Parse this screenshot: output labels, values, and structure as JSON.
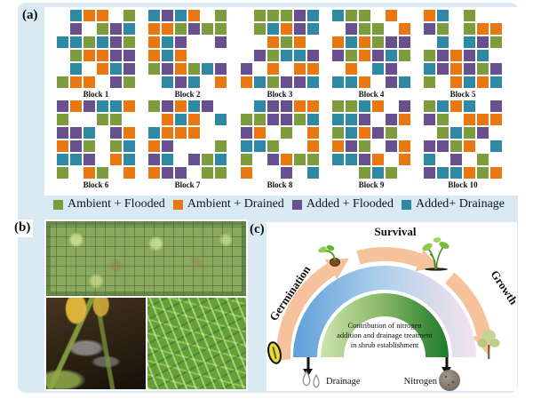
{
  "panel_labels": {
    "a": "(a)",
    "b": "(b)",
    "c": "(c)"
  },
  "colors": {
    "figure_background": "#d9eaf2",
    "ambient_flooded": "#7d9c3e",
    "ambient_drained": "#e97712",
    "added_flooded": "#68508f",
    "added_drainage": "#2f89a5",
    "flow_arrow": "#f5c29c"
  },
  "panel_a": {
    "blocks": [
      {
        "label": "Block 1",
        "grid": [
          ". T O O . G",
          ". P . G P T",
          "T T G T P G",
          ". G O O P P",
          ". T . O T P",
          "G O O . P G"
        ]
      },
      {
        "label": "Block 2",
        "grid": [
          "T P T O . G",
          "O O G P G G",
          "O T P . . P",
          "O T O . . .",
          "G P O G T P",
          ". T P T . O"
        ]
      },
      {
        "label": "Block 3",
        "grid": [
          ". G G G P T",
          ". G T O P T",
          ". . O G O .",
          ". P G T T P",
          "P . O . O O",
          "O T G P P T"
        ]
      },
      {
        "label": "Block 4",
        "grid": [
          "T G G . O .",
          ". P G G . O",
          "O T O G P P",
          "P G O P T G",
          ". O . T P .",
          "T T O . P T"
        ]
      },
      {
        "label": "Block 5",
        "grid": [
          "O T . G . .",
          "P G . G O O",
          ". T . T P G",
          "G P O P T .",
          "T P O P G P",
          "G . O T O T"
        ]
      },
      {
        "label": "Block 6",
        "grid": [
          "P O P T T O",
          "G . . G G .",
          "P P T . P O",
          "O P G . G T",
          "T T P . O T",
          "G . O G . O"
        ]
      },
      {
        "label": "Block 7",
        "grid": [
          "G P O T P .",
          ". O T O . T",
          "T O O O . .",
          "O P . . . G",
          "P T . P G T",
          "O P P . G G"
        ]
      },
      {
        "label": "Block 8",
        "grid": [
          ". T P P O O",
          "G G P P G T",
          "P O . G . O",
          "T T G . . O",
          "G . P O G G",
          "O . . P . T"
        ]
      },
      {
        "label": "Block 9",
        "grid": [
          "G G T O . P",
          "T T P . P O",
          "G T O P G .",
          "O P G . P O",
          "T T P O . O",
          ". . G T G ."
        ]
      },
      {
        "label": "Block 10",
        "grid": [
          "G T O T . P",
          "P G . O O O",
          ". G T G P .",
          "P P G O . T",
          "T . P . G .",
          "P T T O G O"
        ]
      }
    ]
  },
  "legend": {
    "items": [
      {
        "label": "Ambient + Flooded",
        "color_key": "ambient_flooded"
      },
      {
        "label": "Ambient + Drained",
        "color_key": "ambient_drained"
      },
      {
        "label": "Added + Flooded",
        "color_key": "added_flooded"
      },
      {
        "label": "Added+ Drainage",
        "color_key": "added_drainage"
      }
    ]
  },
  "panel_c": {
    "stage_labels": {
      "germination": "Germination",
      "survival": "Survival",
      "growth": "Growth"
    },
    "center_text_lines": {
      "line1": "Contribution of nitrogen",
      "line2": "addition and drainage treatment",
      "line3": "in shrub establishment"
    },
    "bottom_labels": {
      "drainage": "Drainage",
      "nitrogen": "Nitrogen"
    }
  }
}
